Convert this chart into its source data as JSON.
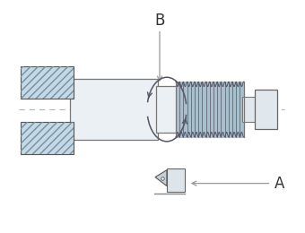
{
  "bg_color": "#ffffff",
  "label_A": "A",
  "label_B": "B",
  "centerline_color": "#b0b8c0",
  "body_fill": "#eaf0f4",
  "body_edge": "#777777",
  "jaw_face": "#c5d8e4",
  "jaw_hatch_color": "#7090a8",
  "thread_fill": "#aabfcc",
  "thread_edge": "#666677",
  "right_end_fill": "#e0e8ee",
  "arrow_color": "#555566",
  "tool_fill": "#dde5ea",
  "fig_width": 3.4,
  "fig_height": 2.6,
  "dpi": 100
}
